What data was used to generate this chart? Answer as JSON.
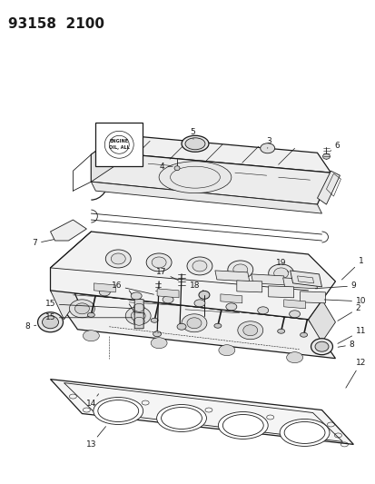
{
  "title": "93158  2100",
  "bg": "#ffffff",
  "lc": "#1a1a1a",
  "fig_w": 4.14,
  "fig_h": 5.33,
  "dpi": 100,
  "title_fs": 11,
  "label_fs": 6.5
}
